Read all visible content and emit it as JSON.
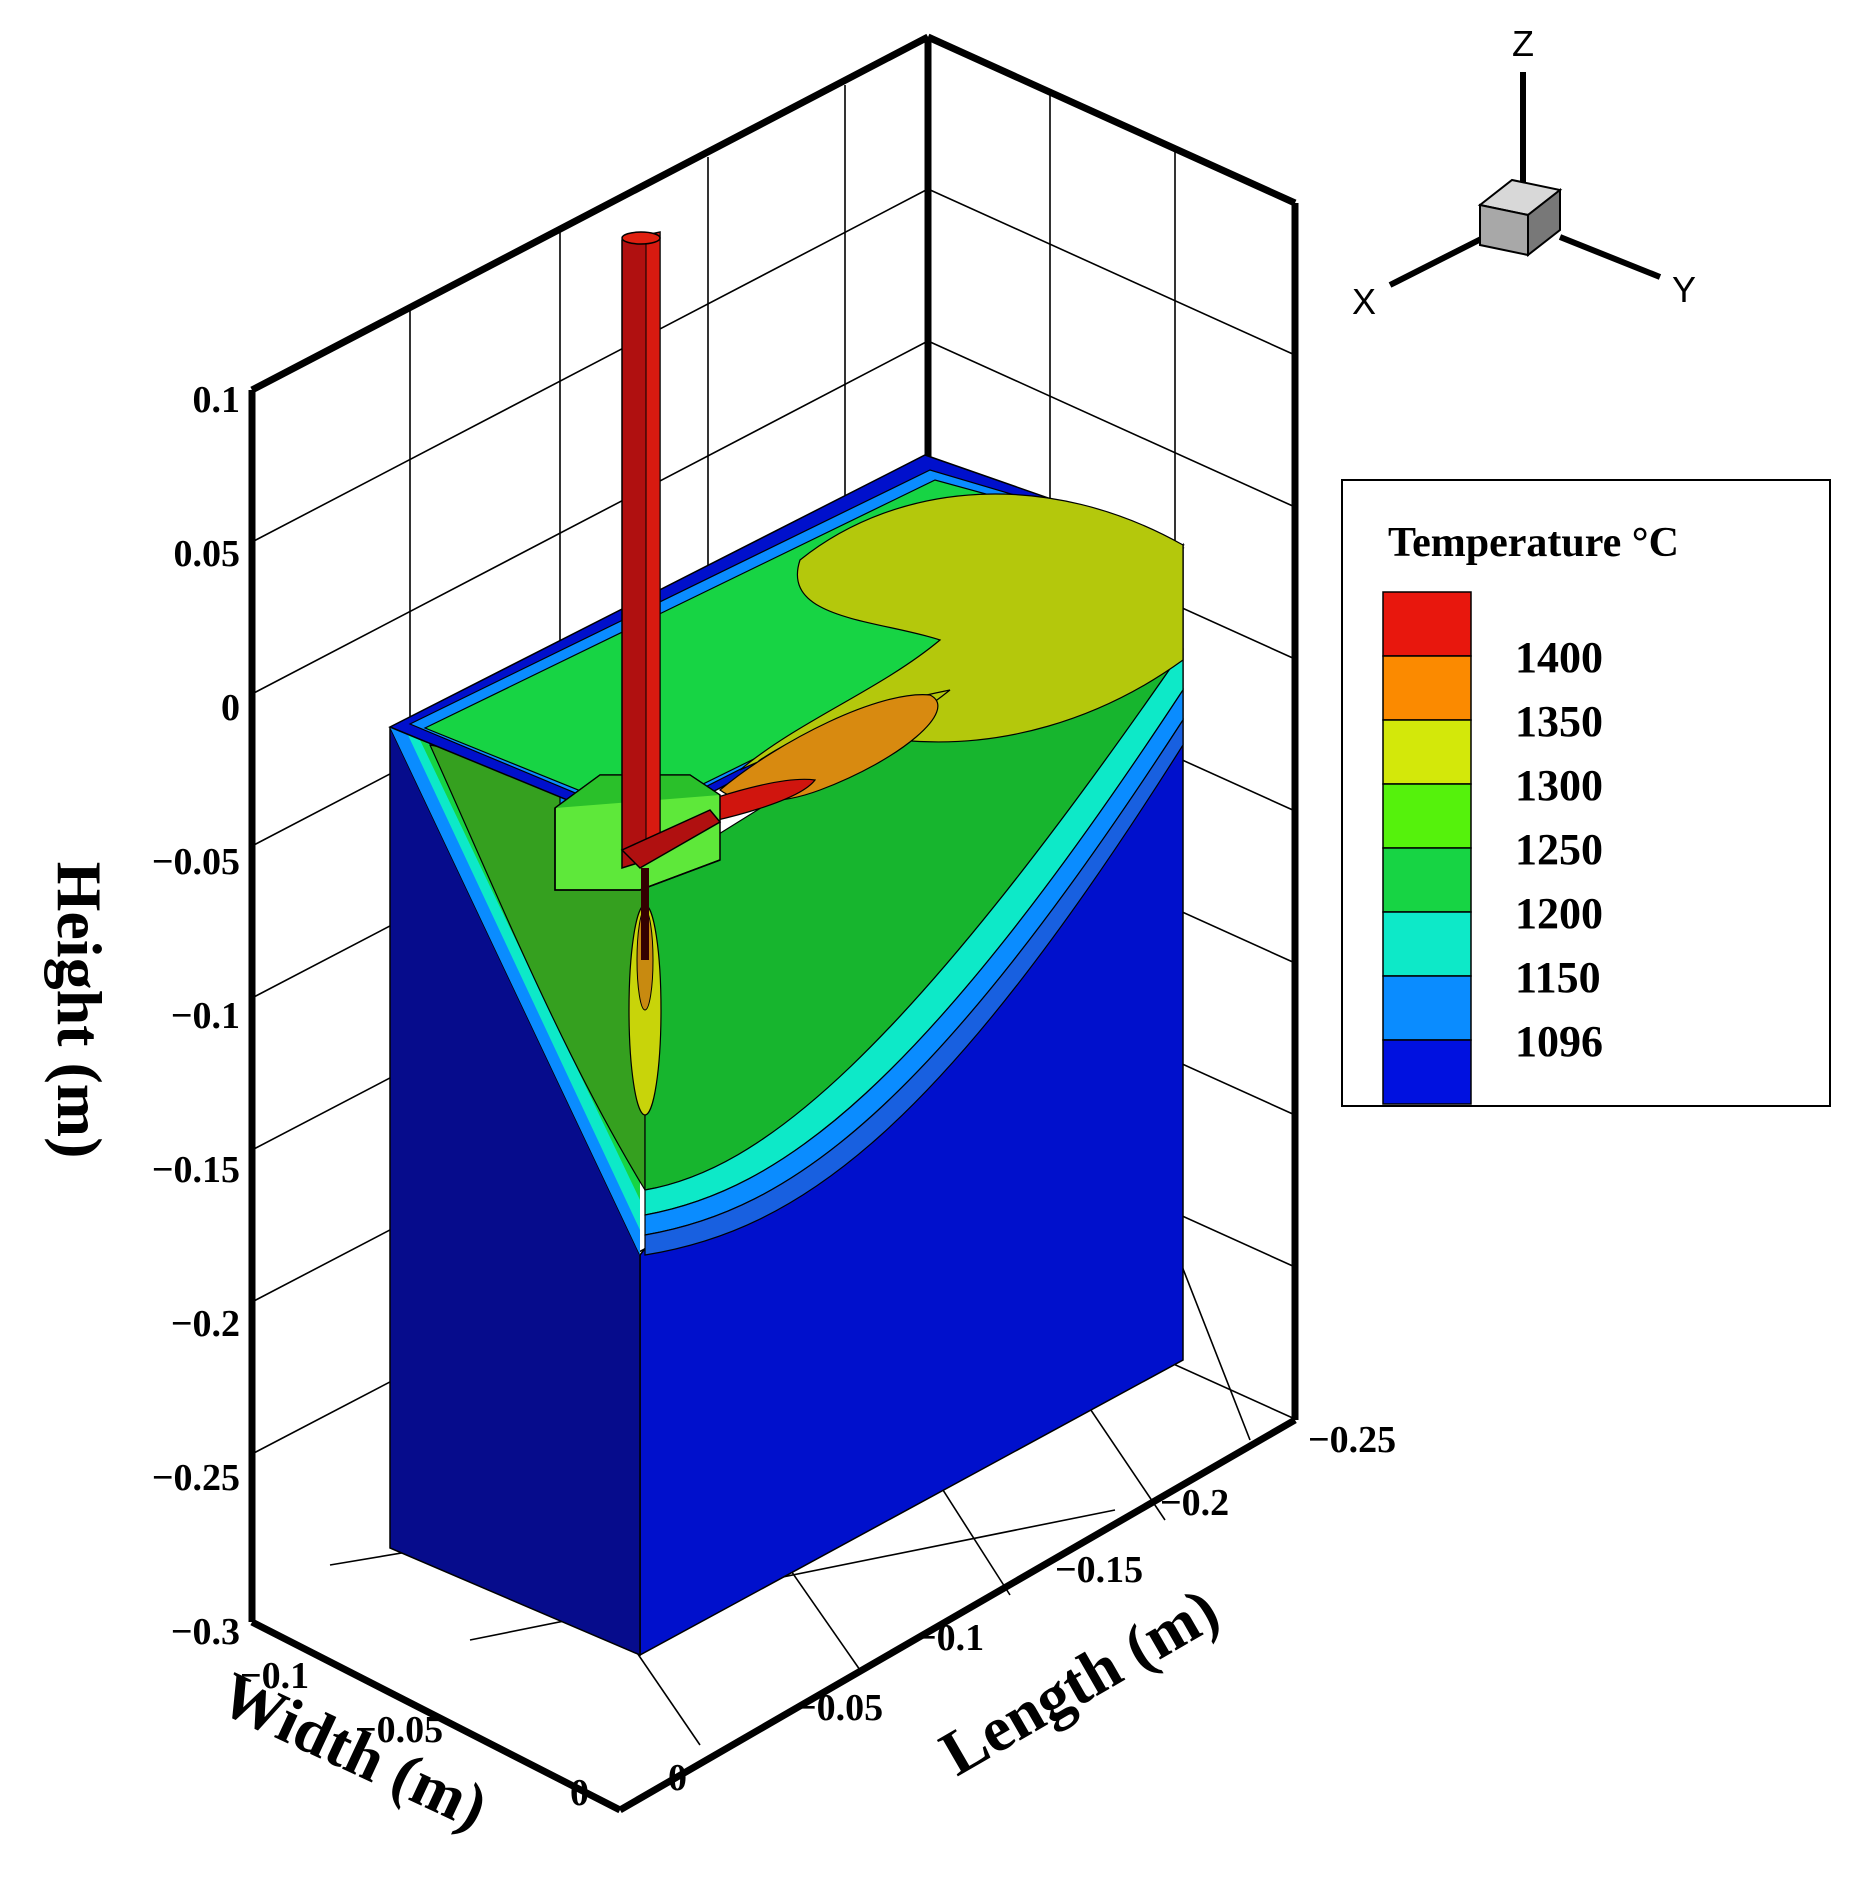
{
  "chart_data": {
    "type": "heatmap",
    "subtype": "3d-contour",
    "title": "",
    "axes": {
      "z": {
        "label": "Height (m)",
        "range": [
          -0.3,
          0.1
        ],
        "ticks": [
          "0.1",
          "0.05",
          "0",
          "−0.05",
          "−0.1",
          "−0.15",
          "−0.2",
          "−0.25",
          "−0.3"
        ]
      },
      "x": {
        "label": "Width (m)",
        "range": [
          -0.1,
          0
        ],
        "ticks": [
          "−0.1",
          "−0.05",
          "0"
        ]
      },
      "y": {
        "label": "Length (m)",
        "range": [
          -0.25,
          0
        ],
        "ticks": [
          "0",
          "−0.05",
          "−0.1",
          "−0.15",
          "−0.2",
          "−0.25"
        ]
      }
    },
    "orientation_axes": {
      "z": "Z",
      "x": "X",
      "y": "Y"
    },
    "legend": {
      "title": "Temperature °C",
      "placement": "right",
      "levels": [
        {
          "label": "1400",
          "color": "#e8170d"
        },
        {
          "label": "1350",
          "color": "#fb8a00"
        },
        {
          "label": "1300",
          "color": "#d3e80a"
        },
        {
          "label": "1250",
          "color": "#55f20c"
        },
        {
          "label": "1200",
          "color": "#17d444"
        },
        {
          "label": "1150",
          "color": "#0de9c8"
        },
        {
          "label": "1096",
          "color": "#0a8cff"
        },
        {
          "label": "",
          "color": "#0011e0"
        }
      ]
    },
    "grid": true
  }
}
